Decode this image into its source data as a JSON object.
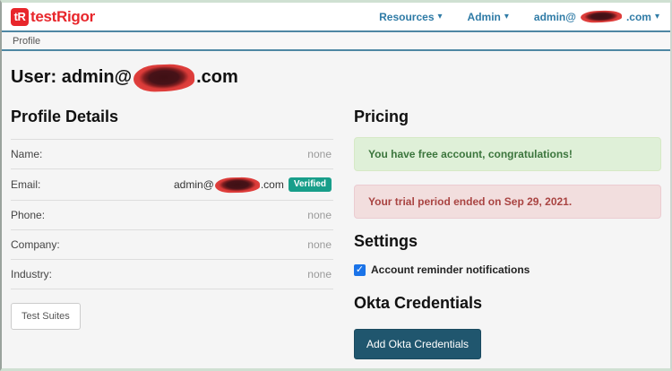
{
  "navbar": {
    "logo": {
      "badge": "tR",
      "text": "testRigor"
    },
    "links": {
      "resources": "Resources",
      "admin": "Admin"
    },
    "user": {
      "email_prefix": "admin@",
      "email_suffix": ".com"
    }
  },
  "icons": {
    "caret_down": "▾",
    "checkmark": "✓"
  },
  "breadcrumb": {
    "current": "Profile"
  },
  "main": {
    "heading_prefix": "User: admin@",
    "heading_suffix": ".com"
  },
  "profile": {
    "title": "Profile Details",
    "rows": [
      {
        "label": "Name:",
        "value": "none"
      },
      {
        "label": "Email:",
        "value_prefix": "admin@",
        "value_suffix": ".com",
        "badge": "Verified"
      },
      {
        "label": "Phone:",
        "value": "none"
      },
      {
        "label": "Company:",
        "value": "none"
      },
      {
        "label": "Industry:",
        "value": "none"
      }
    ],
    "test_suites_button": "Test Suites"
  },
  "pricing": {
    "title": "Pricing",
    "success_message": "You have free account, congratulations!",
    "trial_message": "Your trial period ended on Sep 29, 2021."
  },
  "settings": {
    "title": "Settings",
    "reminder_checkbox": {
      "label": "Account reminder notifications",
      "checked": true
    }
  },
  "okta": {
    "title": "Okta Credentials",
    "add_button": "Add Okta Credentials"
  },
  "colors": {
    "brand_red": "#e8262b",
    "nav_link_blue": "#2f7ba6",
    "separator_blue": "#4e87a3",
    "verified_badge_teal": "#189e8a",
    "okta_button_teal": "#20566e",
    "success_text": "#3c763d",
    "success_bg": "#dff0d8",
    "danger_text": "#a94442",
    "danger_bg": "#f2dede",
    "checkbox_blue": "#1a73e8"
  }
}
